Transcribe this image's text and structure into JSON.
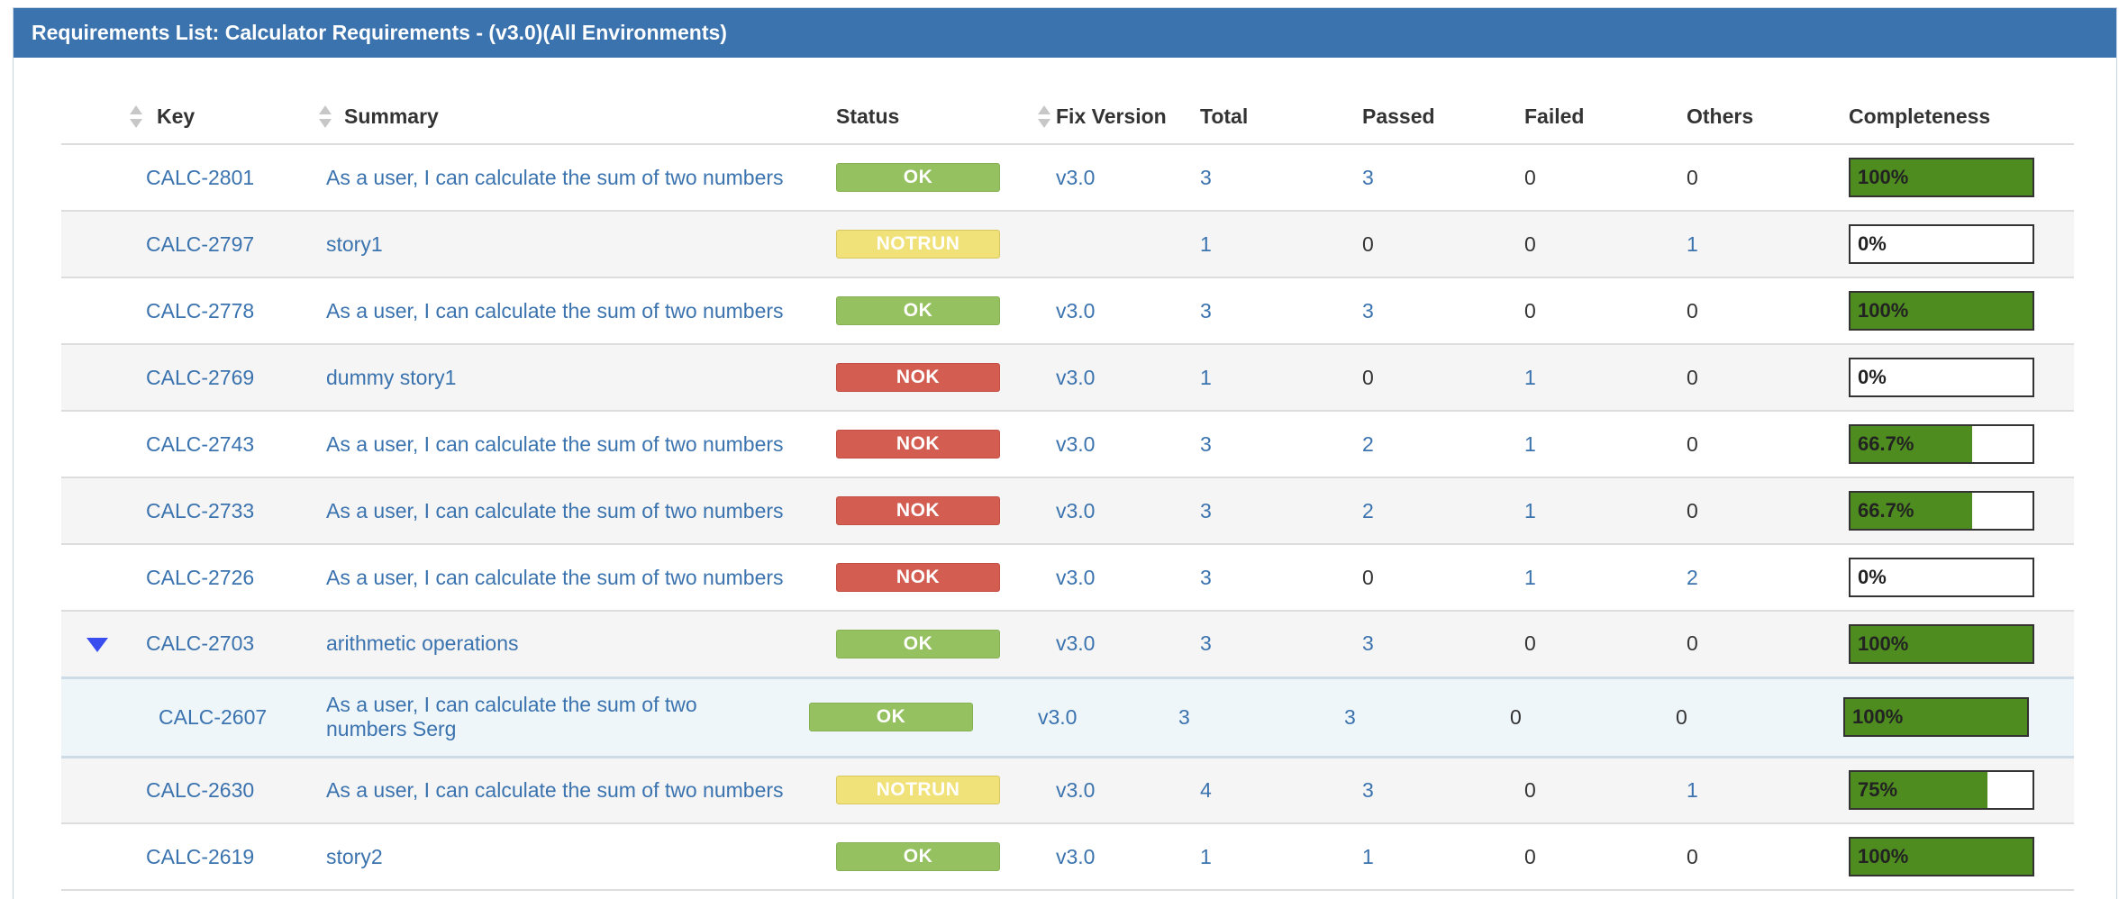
{
  "header": {
    "title": "Requirements List: Calculator Requirements - (v3.0)(All Environments)"
  },
  "columns": {
    "key": "Key",
    "summary": "Summary",
    "status": "Status",
    "fix_version": "Fix Version",
    "total": "Total",
    "passed": "Passed",
    "failed": "Failed",
    "others": "Others",
    "completeness": "Completeness"
  },
  "colors": {
    "header_bg": "#3b73af",
    "link": "#3b73af",
    "ok": "#95c160",
    "nok": "#d45d52",
    "notrun": "#f1e179",
    "progress_fill": "#4e8c1f"
  },
  "rows": [
    {
      "key": "CALC-2801",
      "summary": "As a user, I can calculate the sum of two numbers",
      "status": "OK",
      "fix_version": "v3.0",
      "total": "3",
      "passed": "3",
      "failed": "0",
      "others": "0",
      "completeness": "100%",
      "completeness_value": 100
    },
    {
      "key": "CALC-2797",
      "summary": "story1",
      "status": "NOTRUN",
      "fix_version": "",
      "total": "1",
      "passed": "0",
      "failed": "0",
      "others": "1",
      "completeness": "0%",
      "completeness_value": 0
    },
    {
      "key": "CALC-2778",
      "summary": "As a user, I can calculate the sum of two numbers",
      "status": "OK",
      "fix_version": "v3.0",
      "total": "3",
      "passed": "3",
      "failed": "0",
      "others": "0",
      "completeness": "100%",
      "completeness_value": 100
    },
    {
      "key": "CALC-2769",
      "summary": "dummy story1",
      "status": "NOK",
      "fix_version": "v3.0",
      "total": "1",
      "passed": "0",
      "failed": "1",
      "others": "0",
      "completeness": "0%",
      "completeness_value": 0
    },
    {
      "key": "CALC-2743",
      "summary": "As a user, I can calculate the sum of two numbers",
      "status": "NOK",
      "fix_version": "v3.0",
      "total": "3",
      "passed": "2",
      "failed": "1",
      "others": "0",
      "completeness": "66.7%",
      "completeness_value": 66.7
    },
    {
      "key": "CALC-2733",
      "summary": "As a user, I can calculate the sum of two numbers",
      "status": "NOK",
      "fix_version": "v3.0",
      "total": "3",
      "passed": "2",
      "failed": "1",
      "others": "0",
      "completeness": "66.7%",
      "completeness_value": 66.7
    },
    {
      "key": "CALC-2726",
      "summary": "As a user, I can calculate the sum of two numbers",
      "status": "NOK",
      "fix_version": "v3.0",
      "total": "3",
      "passed": "0",
      "failed": "1",
      "others": "2",
      "completeness": "0%",
      "completeness_value": 0
    },
    {
      "key": "CALC-2703",
      "summary": "arithmetic operations",
      "status": "OK",
      "fix_version": "v3.0",
      "total": "3",
      "passed": "3",
      "failed": "0",
      "others": "0",
      "completeness": "100%",
      "completeness_value": 100,
      "expanded": true
    },
    {
      "key": "CALC-2607",
      "summary": "As a user, I can calculate the sum of two numbers Serg",
      "status": "OK",
      "fix_version": "v3.0",
      "total": "3",
      "passed": "3",
      "failed": "0",
      "others": "0",
      "completeness": "100%",
      "completeness_value": 100,
      "child": true
    },
    {
      "key": "CALC-2630",
      "summary": "As a user, I can calculate the sum of two numbers",
      "status": "NOTRUN",
      "fix_version": "v3.0",
      "total": "4",
      "passed": "3",
      "failed": "0",
      "others": "1",
      "completeness": "75%",
      "completeness_value": 75
    },
    {
      "key": "CALC-2619",
      "summary": "story2",
      "status": "OK",
      "fix_version": "v3.0",
      "total": "1",
      "passed": "1",
      "failed": "0",
      "others": "0",
      "completeness": "100%",
      "completeness_value": 100
    }
  ]
}
